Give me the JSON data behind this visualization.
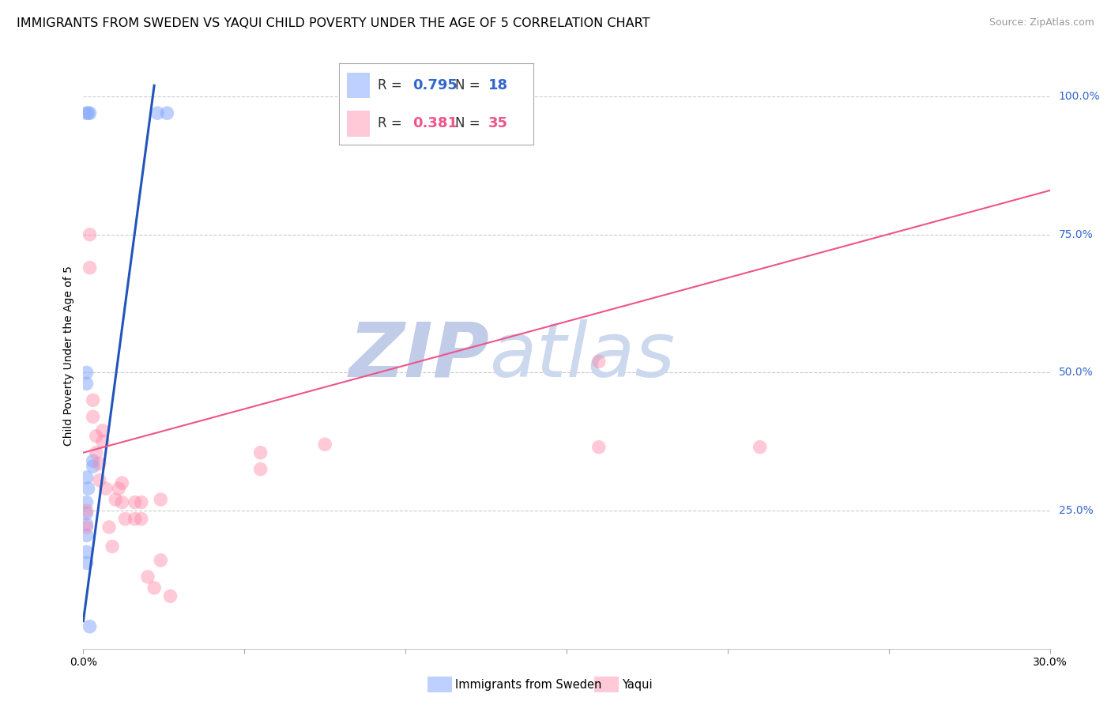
{
  "title": "IMMIGRANTS FROM SWEDEN VS YAQUI CHILD POVERTY UNDER THE AGE OF 5 CORRELATION CHART",
  "source": "Source: ZipAtlas.com",
  "ylabel": "Child Poverty Under the Age of 5",
  "legend_blue_r": "0.795",
  "legend_blue_n": "18",
  "legend_pink_r": "0.381",
  "legend_pink_n": "35",
  "legend_blue_label": "Immigrants from Sweden",
  "legend_pink_label": "Yaqui",
  "watermark_zip": "ZIP",
  "watermark_atlas": "atlas",
  "blue_scatter_x": [
    0.001,
    0.0015,
    0.002,
    0.001,
    0.001,
    0.003,
    0.003,
    0.001,
    0.0015,
    0.001,
    0.001,
    0.001,
    0.001,
    0.001,
    0.001,
    0.023,
    0.026,
    0.002
  ],
  "blue_scatter_y": [
    0.97,
    0.97,
    0.97,
    0.5,
    0.48,
    0.34,
    0.33,
    0.31,
    0.29,
    0.265,
    0.245,
    0.225,
    0.205,
    0.175,
    0.155,
    0.97,
    0.97,
    0.04
  ],
  "pink_scatter_x": [
    0.001,
    0.001,
    0.002,
    0.002,
    0.003,
    0.003,
    0.004,
    0.004,
    0.005,
    0.005,
    0.006,
    0.006,
    0.007,
    0.008,
    0.009,
    0.01,
    0.011,
    0.012,
    0.012,
    0.013,
    0.016,
    0.016,
    0.018,
    0.018,
    0.02,
    0.022,
    0.024,
    0.024,
    0.027,
    0.055,
    0.055,
    0.075,
    0.16,
    0.16,
    0.21
  ],
  "pink_scatter_y": [
    0.25,
    0.22,
    0.75,
    0.69,
    0.45,
    0.42,
    0.385,
    0.355,
    0.335,
    0.305,
    0.395,
    0.375,
    0.29,
    0.22,
    0.185,
    0.27,
    0.29,
    0.3,
    0.265,
    0.235,
    0.265,
    0.235,
    0.265,
    0.235,
    0.13,
    0.11,
    0.27,
    0.16,
    0.095,
    0.355,
    0.325,
    0.37,
    0.365,
    0.52,
    0.365
  ],
  "blue_line_x": [
    0.0,
    0.022
  ],
  "blue_line_y": [
    0.05,
    1.02
  ],
  "pink_line_x": [
    0.0,
    0.3
  ],
  "pink_line_y": [
    0.355,
    0.83
  ],
  "xmin": 0.0,
  "xmax": 0.3,
  "ymin": 0.0,
  "ymax": 1.06,
  "xtick_positions": [
    0.0,
    0.05,
    0.1,
    0.15,
    0.2,
    0.25,
    0.3
  ],
  "ytick_vals": [
    0.25,
    0.5,
    0.75,
    1.0
  ],
  "ytick_labels": [
    "25.0%",
    "50.0%",
    "75.0%",
    "100.0%"
  ],
  "grid_color": "#cccccc",
  "blue_scatter_color": "#88aaff",
  "pink_scatter_color": "#ff88aa",
  "blue_line_color": "#2255bb",
  "pink_line_color": "#ee5588",
  "bg_color": "#ffffff",
  "title_fontsize": 11.5,
  "source_fontsize": 9,
  "axis_label_fontsize": 10,
  "tick_label_fontsize": 10,
  "watermark_zip_color": "#c0cce8",
  "watermark_atlas_color": "#ccd8ee",
  "watermark_fontsize": 70
}
